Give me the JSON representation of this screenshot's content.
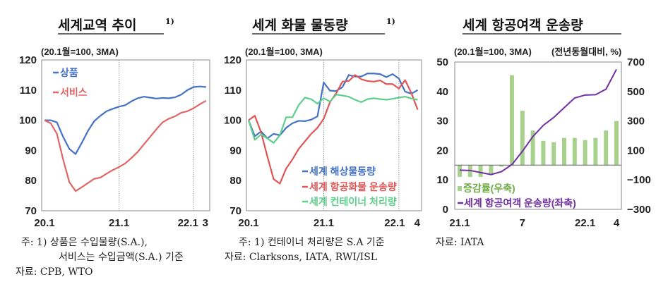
{
  "colors": {
    "goods": "#4472c4",
    "services": "#e06666",
    "sea": "#4472c4",
    "air_cargo": "#e05555",
    "container": "#5ecf8a",
    "passenger": "#7030a0",
    "growth_bar": "#a9d18e"
  },
  "chart_data": [
    {
      "type": "line",
      "title": "세계교역 추이",
      "title_sup": "1)",
      "unit_label": "(20.1월=100, 3MA)",
      "ylim": [
        70,
        120
      ],
      "yticks": [
        "120",
        "110",
        "100",
        "90",
        "80",
        "70"
      ],
      "xtick_labels": [
        "20.1",
        "21.1",
        "22.1",
        "3"
      ],
      "x": "monthly 20.1–22.3",
      "legend_placement": "top-left",
      "series": [
        {
          "name": "상품",
          "values": [
            100,
            100,
            99.3,
            94.5,
            90.5,
            88.8,
            92.5,
            96.5,
            99.7,
            101.5,
            103,
            103.8,
            104.5,
            105,
            106.3,
            107.3,
            107.8,
            107.5,
            107.2,
            107.4,
            107.3,
            107.6,
            108.5,
            110,
            111,
            111.2,
            111
          ]
        },
        {
          "name": "서비스",
          "values": [
            100,
            99,
            95.5,
            87,
            79.5,
            76.5,
            77.8,
            79.2,
            80.6,
            81,
            82.3,
            83.5,
            84.5,
            85.7,
            87.5,
            89.5,
            92,
            94.5,
            97,
            99.3,
            100.5,
            101.3,
            102.5,
            103,
            104,
            105.3,
            106.5
          ]
        }
      ],
      "notes": [
        "주:  1) 상품은  수입물량(S.A.),",
        "서비스는  수입금액(S.A.)  기준",
        "자료: CPB,  WTO"
      ]
    },
    {
      "type": "line",
      "title": "세계 화물 물동량",
      "title_sup": "1)",
      "unit_label": "(20.1월=100, 3MA)",
      "ylim": [
        70,
        120
      ],
      "yticks": [
        "120",
        "110",
        "100",
        "90",
        "80",
        "70"
      ],
      "xtick_labels": [
        "20.1",
        "21.1",
        "22.1",
        "4"
      ],
      "x": "monthly 20.1–22.4",
      "legend_placement": "bottom-right",
      "series": [
        {
          "name": "세계 해상물동량",
          "values": [
            100,
            94.7,
            96.3,
            94,
            95.5,
            95,
            97.5,
            99,
            99.8,
            99.7,
            100.2,
            101.3,
            112.5,
            109.8,
            109.7,
            111,
            115,
            114.5,
            114.5,
            115.5,
            115.5,
            115.3,
            114.3,
            115.3,
            113.8,
            109.5,
            108.8,
            110
          ]
        },
        {
          "name": "세계 항공화물 운송량",
          "values": [
            100,
            101.5,
            96,
            88,
            80.5,
            79,
            84,
            87,
            90.5,
            93,
            95.5,
            97.5,
            100.5,
            106,
            109,
            112.8,
            113,
            115,
            113.6,
            113,
            112.8,
            113.2,
            112,
            112,
            110.5,
            113.3,
            109,
            103.5
          ]
        },
        {
          "name": "세계 컨테이너 처리량",
          "values": [
            100,
            93.5,
            95.3,
            94,
            92.5,
            95,
            101,
            101,
            105,
            107.5,
            107,
            105.5,
            107.3,
            106.2,
            108.5,
            108.2,
            107.8,
            106.8,
            106,
            107,
            107.3,
            107,
            106.8,
            107.1,
            107.5,
            107.8,
            107.2,
            106.8
          ]
        }
      ],
      "notes": [
        "주:  1)  컨테이너 처리량은 S.A  기준",
        "자료: Clarksons,  IATA,  RWI/ISL"
      ]
    },
    {
      "type": "bar+line",
      "title": "세계 항공여객 운송량",
      "unit_label_left": "(20.1월=100, 3MA)",
      "unit_label_right": "(전년동월대비, %)",
      "ylim_left": [
        0,
        50
      ],
      "ylim_right": [
        -300,
        700
      ],
      "yticks_left": [
        "50",
        "40",
        "30",
        "20",
        "10",
        "0"
      ],
      "yticks_right": [
        "700",
        "500",
        "300",
        "100",
        "−100",
        "−300"
      ],
      "xtick_labels": [
        "21.1",
        "7",
        "22.1",
        "4"
      ],
      "x": "monthly 21.1–22.4",
      "legend_placement": "bottom-left",
      "bars": {
        "name": "증감률(우축)",
        "values": [
          -80,
          -80,
          -80,
          -60,
          -10,
          610,
          370,
          235,
          165,
          155,
          185,
          185,
          170,
          185,
          235,
          300
        ]
      },
      "line": {
        "name": "세계 항공여객 운송량(좌축)",
        "values": [
          13.3,
          13.2,
          12.5,
          11.8,
          12.8,
          15.2,
          19.7,
          24.7,
          28.5,
          31.2,
          34.5,
          37.8,
          38.8,
          38.9,
          40.8,
          47.5
        ]
      },
      "notes": [
        "자료:   IATA"
      ]
    }
  ]
}
